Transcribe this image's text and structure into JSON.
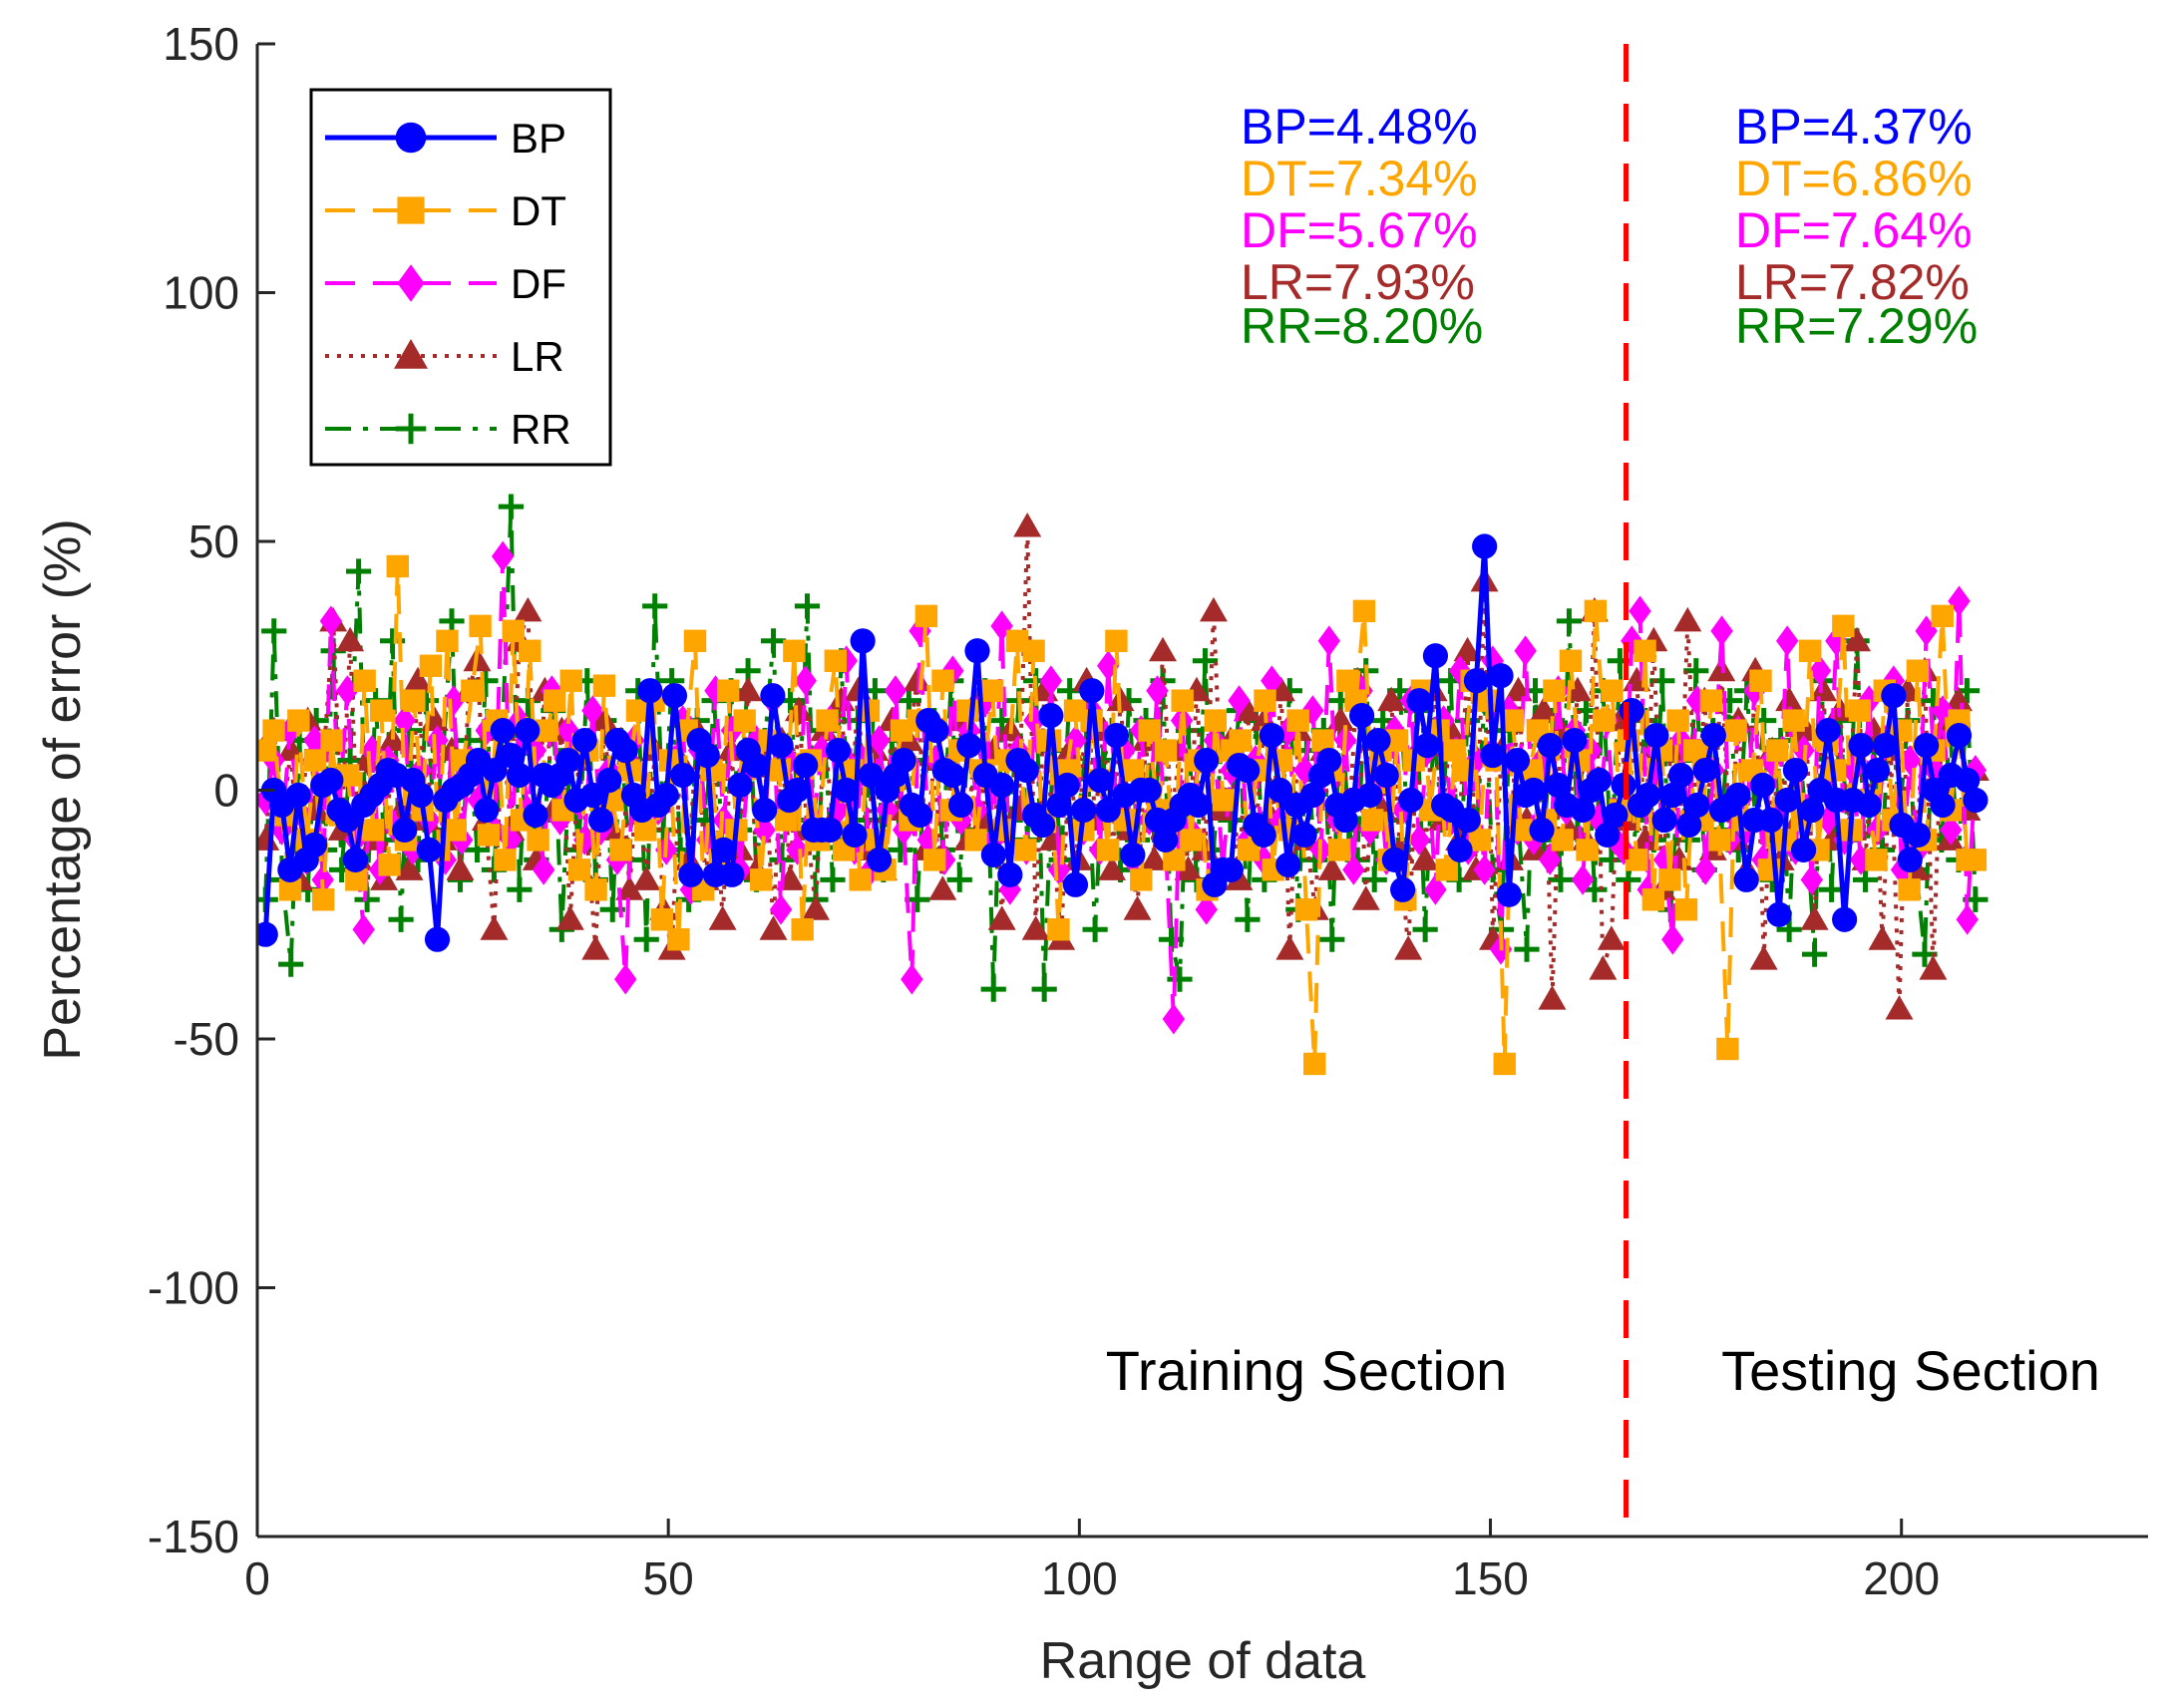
{
  "chart_data": {
    "type": "line",
    "title": "",
    "xlabel": "Range of data",
    "ylabel": "Percentage of error (%)",
    "xlim": [
      0,
      230
    ],
    "ylim": [
      -150,
      150
    ],
    "xticks": [
      0,
      50,
      100,
      150,
      200
    ],
    "yticks": [
      -150,
      -100,
      -50,
      0,
      50,
      100,
      150
    ],
    "grid": false,
    "legend_position": "top-left",
    "divider": {
      "x": 166.5,
      "color": "#ff0000"
    },
    "sections": [
      {
        "label": "Training Section"
      },
      {
        "label": "Testing Section"
      }
    ],
    "annotations": {
      "training": [
        {
          "text": "BP=4.48%",
          "color": "#0000ff"
        },
        {
          "text": "DT=7.34%",
          "color": "#ffa500"
        },
        {
          "text": "DF=5.67%",
          "color": "#ff00ff"
        },
        {
          "text": "LR=7.93%",
          "color": "#a52a2a"
        },
        {
          "text": "RR=8.20%",
          "color": "#008000"
        }
      ],
      "testing": [
        {
          "text": "BP=4.37%",
          "color": "#0000ff"
        },
        {
          "text": "DT=6.86%",
          "color": "#ffa500"
        },
        {
          "text": "DF=7.64%",
          "color": "#ff00ff"
        },
        {
          "text": "LR=7.82%",
          "color": "#a52a2a"
        },
        {
          "text": "RR=7.29%",
          "color": "#008000"
        }
      ]
    },
    "x_range": [
      1,
      209
    ],
    "series": [
      {
        "name": "BP",
        "color": "#0000ff",
        "marker": "circle",
        "line": "solid",
        "values": [
          -29,
          0,
          -3,
          -16,
          -1,
          -14,
          -11,
          1,
          2,
          -4,
          -6,
          -14,
          -3,
          -1,
          1,
          4,
          3,
          -8,
          2,
          -1,
          -12,
          -30,
          -2,
          0,
          1,
          3,
          6,
          -4,
          4,
          12,
          7,
          3,
          12,
          -5,
          3,
          1,
          3,
          6,
          -2,
          10,
          -1,
          -6,
          2,
          10,
          8,
          -1,
          -4,
          20,
          -3,
          -1,
          19,
          3,
          -17,
          10,
          7,
          -17,
          -12,
          -17,
          1,
          8,
          5,
          -4,
          19,
          9,
          -2,
          0,
          5,
          -8,
          -8,
          -8,
          8,
          0,
          -9,
          30,
          3,
          -14,
          0,
          3,
          6,
          -3,
          -5,
          14,
          12,
          4,
          3,
          -3,
          9,
          28,
          3,
          -13,
          1,
          -17,
          6,
          4,
          -5,
          -7,
          15,
          -3,
          1,
          -19,
          -4,
          20,
          2,
          -4,
          11,
          -1,
          -13,
          0,
          0,
          -6,
          -10,
          -6,
          -3,
          -1,
          -3,
          6,
          -19,
          -16,
          -16,
          5,
          4,
          -7,
          -9,
          11,
          0,
          -15,
          -3,
          -9,
          -1,
          3,
          6,
          -3,
          -6,
          -2,
          15,
          -1,
          10,
          3,
          -14,
          -20,
          -2,
          18,
          9,
          27,
          -3,
          -4,
          -12,
          -6,
          22,
          49,
          7,
          23,
          -21,
          6,
          -1,
          0,
          -8,
          9,
          1,
          -3,
          10,
          -4,
          0,
          2,
          -9,
          -5,
          1,
          16,
          -3,
          -1,
          11,
          -6,
          -1,
          3,
          -7,
          -3,
          4,
          11,
          -4,
          -3,
          -1,
          -18,
          -6,
          1,
          -6,
          -25,
          -2,
          4,
          -12,
          -4,
          0,
          12,
          -2,
          -26,
          -2,
          9,
          -3,
          4,
          9,
          19,
          -7,
          -14,
          -9,
          9,
          0,
          -3,
          3,
          11,
          2,
          -2
        ]
      },
      {
        "name": "DT",
        "color": "#ffa500",
        "marker": "square",
        "line": "dashed",
        "values": [
          8,
          12,
          -5,
          -20,
          14,
          -10,
          6,
          -22,
          10,
          -5,
          3,
          -18,
          22,
          -8,
          16,
          -15,
          45,
          -10,
          18,
          -4,
          25,
          -12,
          30,
          -8,
          6,
          20,
          33,
          -9,
          14,
          -14,
          32,
          -6,
          28,
          -10,
          12,
          18,
          -4,
          22,
          -16,
          8,
          -20,
          21,
          -2,
          -12,
          4,
          16,
          -8,
          18,
          -26,
          6,
          -30,
          12,
          30,
          -20,
          4,
          -14,
          20,
          -8,
          14,
          6,
          -18,
          10,
          4,
          -6,
          28,
          -28,
          6,
          -10,
          14,
          26,
          -12,
          4,
          -18,
          16,
          -10,
          -16,
          2,
          12,
          -6,
          14,
          35,
          -14,
          22,
          -4,
          8,
          16,
          -10,
          4,
          20,
          -8,
          6,
          30,
          -12,
          28,
          -6,
          10,
          -28,
          4,
          16,
          -8,
          14,
          2,
          -12,
          30,
          -6,
          4,
          -18,
          12,
          -4,
          8,
          -14,
          18,
          -10,
          6,
          -20,
          14,
          -2,
          8,
          10,
          -12,
          4,
          18,
          -16,
          6,
          -8,
          14,
          -24,
          -55,
          10,
          4,
          -12,
          22,
          18,
          36,
          -6,
          8,
          -14,
          10,
          -22,
          6,
          20,
          -4,
          12,
          -16,
          8,
          4,
          22,
          -10,
          18,
          6,
          -55,
          14,
          -8,
          4,
          12,
          -6,
          20,
          -10,
          26,
          6,
          -12,
          36,
          14,
          20,
          -4,
          10,
          -14,
          28,
          -22,
          8,
          -18,
          14,
          -24,
          8,
          -6,
          18,
          -10,
          -52,
          12,
          -6,
          4,
          22,
          -16,
          8,
          -10,
          14,
          -6,
          28,
          -12,
          10,
          4,
          33,
          -8,
          16,
          -2,
          -14,
          20,
          -6,
          12,
          -20,
          24,
          -10,
          8,
          35,
          -4,
          14,
          -14,
          -14
        ]
      },
      {
        "name": "DF",
        "color": "#ff00ff",
        "marker": "diamond",
        "line": "dashed",
        "values": [
          -2,
          6,
          -8,
          12,
          -4,
          -14,
          10,
          -18,
          34,
          -4,
          20,
          -10,
          -28,
          8,
          -16,
          6,
          -8,
          14,
          -12,
          4,
          -6,
          10,
          -14,
          18,
          -10,
          6,
          -2,
          12,
          -8,
          47,
          -10,
          14,
          -4,
          8,
          -16,
          20,
          -6,
          12,
          -2,
          -10,
          16,
          -8,
          4,
          -14,
          -38,
          10,
          -6,
          18,
          -4,
          -12,
          6,
          14,
          -20,
          8,
          -10,
          20,
          -6,
          12,
          -16,
          4,
          10,
          -8,
          18,
          -24,
          6,
          -12,
          22,
          -6,
          8,
          14,
          -4,
          26,
          -12,
          6,
          -16,
          10,
          -4,
          20,
          -8,
          -38,
          32,
          -10,
          6,
          -14,
          24,
          -6,
          12,
          -4,
          18,
          -10,
          33,
          -20,
          8,
          -12,
          14,
          -6,
          22,
          -16,
          4,
          10,
          -8,
          16,
          -12,
          25,
          -4,
          8,
          -14,
          12,
          -6,
          20,
          -10,
          -46,
          14,
          -8,
          6,
          -24,
          10,
          -16,
          4,
          18,
          -10,
          6,
          -14,
          22,
          -6,
          12,
          -8,
          4,
          16,
          -12,
          30,
          -6,
          10,
          -16,
          20,
          -8,
          6,
          -14,
          12,
          -4,
          18,
          -10,
          8,
          -20,
          14,
          -6,
          24,
          -12,
          6,
          -16,
          26,
          -32,
          16,
          -8,
          28,
          -10,
          6,
          -14,
          20,
          -4,
          12,
          -18,
          8,
          -6,
          14,
          -10,
          -12,
          30,
          36,
          -20,
          8,
          -14,
          -30,
          10,
          -6,
          18,
          -16,
          4,
          32,
          -10,
          12,
          -8,
          20,
          -14,
          6,
          -4,
          30,
          -12,
          8,
          -18,
          24,
          -6,
          30,
          -10,
          4,
          -14,
          18,
          -8,
          10,
          22,
          -16,
          6,
          -12,
          32,
          4,
          16,
          -8,
          38,
          -26,
          4
        ]
      },
      {
        "name": "LR",
        "color": "#a52a2a",
        "marker": "triangle",
        "line": "dotted",
        "values": [
          -10,
          12,
          -6,
          8,
          -18,
          14,
          -4,
          10,
          34,
          -8,
          30,
          -14,
          6,
          -10,
          -18,
          10,
          -4,
          -16,
          22,
          -6,
          14,
          -10,
          8,
          -16,
          20,
          26,
          -6,
          -28,
          12,
          -8,
          30,
          36,
          -14,
          20,
          -4,
          12,
          -26,
          6,
          -10,
          -32,
          14,
          -8,
          10,
          -20,
          4,
          -18,
          8,
          -24,
          -32,
          6,
          -14,
          12,
          -18,
          4,
          -26,
          8,
          -12,
          20,
          -16,
          6,
          -28,
          10,
          -18,
          16,
          -8,
          -24,
          12,
          -6,
          18,
          -10,
          20,
          -12,
          8,
          -16,
          14,
          -4,
          10,
          22,
          -12,
          6,
          -20,
          4,
          14,
          -10,
          18,
          -6,
          8,
          -26,
          12,
          -4,
          53,
          -28,
          20,
          -10,
          -30,
          8,
          -14,
          22,
          -6,
          12,
          -16,
          18,
          -8,
          -24,
          10,
          -14,
          28,
          -6,
          8,
          -16,
          20,
          -12,
          36,
          -4,
          10,
          -18,
          16,
          -8,
          14,
          -6,
          20,
          -32,
          12,
          -10,
          -24,
          8,
          -16,
          14,
          -6,
          22,
          -22,
          10,
          -4,
          18,
          -12,
          -32,
          8,
          -14,
          20,
          -6,
          12,
          -10,
          28,
          -16,
          42,
          -30,
          8,
          -14,
          20,
          -6,
          -12,
          16,
          -42,
          12,
          -8,
          20,
          -10,
          36,
          -36,
          -30,
          14,
          -6,
          22,
          -10,
          30,
          -20,
          8,
          -14,
          34,
          -6,
          18,
          -12,
          24,
          -10,
          14,
          -16,
          24,
          -34,
          8,
          -14,
          18,
          -6,
          12,
          -26,
          20,
          -10,
          16,
          -8,
          30,
          -14,
          12,
          -30,
          8,
          -44,
          20,
          -16,
          24,
          -36,
          12,
          -10,
          18,
          -4,
          4
        ]
      },
      {
        "name": "RR",
        "color": "#008000",
        "marker": "plus",
        "line": "dashdot",
        "values": [
          -22,
          32,
          -18,
          -35,
          10,
          -20,
          14,
          -12,
          28,
          -16,
          6,
          44,
          -22,
          18,
          -10,
          30,
          -26,
          12,
          -14,
          18,
          -8,
          8,
          34,
          -18,
          10,
          -12,
          22,
          -16,
          12,
          57,
          -20,
          18,
          -14,
          -6,
          16,
          -28,
          8,
          -12,
          22,
          -18,
          14,
          -24,
          10,
          -14,
          20,
          -30,
          37,
          -8,
          22,
          -12,
          -22,
          14,
          -6,
          18,
          -12,
          20,
          -8,
          24,
          -18,
          10,
          30,
          -14,
          18,
          -6,
          37,
          -22,
          12,
          -18,
          26,
          -10,
          14,
          -6,
          20,
          -16,
          10,
          -12,
          18,
          -22,
          6,
          14,
          -12,
          22,
          -18,
          10,
          -8,
          20,
          -40,
          14,
          -6,
          18,
          -10,
          22,
          -40,
          8,
          -14,
          20,
          -6,
          10,
          -28,
          6,
          12,
          -16,
          18,
          -10,
          14,
          -8,
          22,
          -30,
          -38,
          12,
          -18,
          26,
          -12,
          10,
          -6,
          16,
          -26,
          14,
          -18,
          10,
          -6,
          20,
          -24,
          8,
          -14,
          12,
          -30,
          18,
          -8,
          -14,
          24,
          -18,
          14,
          -6,
          20,
          -10,
          16,
          -28,
          12,
          -6,
          22,
          -18,
          14,
          -10,
          18,
          -16,
          -28,
          12,
          -6,
          -32,
          20,
          -10,
          14,
          -18,
          34,
          -8,
          16,
          -20,
          20,
          -14,
          26,
          -18,
          -6,
          14,
          -10,
          22,
          -24,
          6,
          -10,
          24,
          -16,
          12,
          -8,
          18,
          -12,
          20,
          -6,
          14,
          -18,
          10,
          -28,
          12,
          -6,
          -33,
          22,
          -20,
          14,
          -10,
          30,
          -18,
          8,
          -12,
          20,
          -6,
          14,
          -16,
          -33,
          18,
          -10,
          12,
          -14,
          20,
          -22
        ]
      }
    ]
  }
}
